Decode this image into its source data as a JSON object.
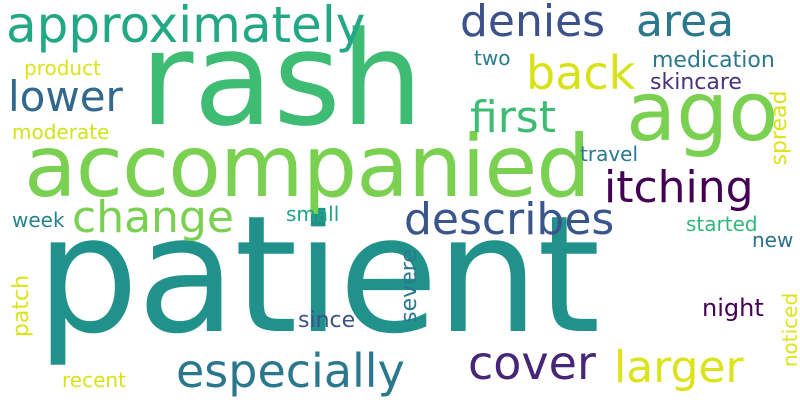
{
  "words": {
    "patient": "patient",
    "rash": "rash",
    "accompanied": "accompanied",
    "approximately": "approximately",
    "ago": "ago",
    "denies": "denies",
    "area": "area",
    "back": "back",
    "lower": "lower",
    "first": "first",
    "itching": "itching",
    "change": "change",
    "describes": "describes",
    "especially": "especially",
    "cover": "cover",
    "larger": "larger",
    "medication": "medication",
    "skincare": "skincare",
    "product": "product",
    "two": "two",
    "moderate": "moderate",
    "travel": "travel",
    "spread": "spread",
    "week": "week",
    "small": "small",
    "started": "started",
    "new": "new",
    "patch": "patch",
    "severe": "severe",
    "since": "since",
    "night": "night",
    "noticed": "noticed",
    "recent": "recent"
  },
  "palette": [
    "#440154",
    "#482677",
    "#3b528b",
    "#2a788e",
    "#21918c",
    "#22a884",
    "#3fbc73",
    "#7ad151",
    "#dce319"
  ]
}
